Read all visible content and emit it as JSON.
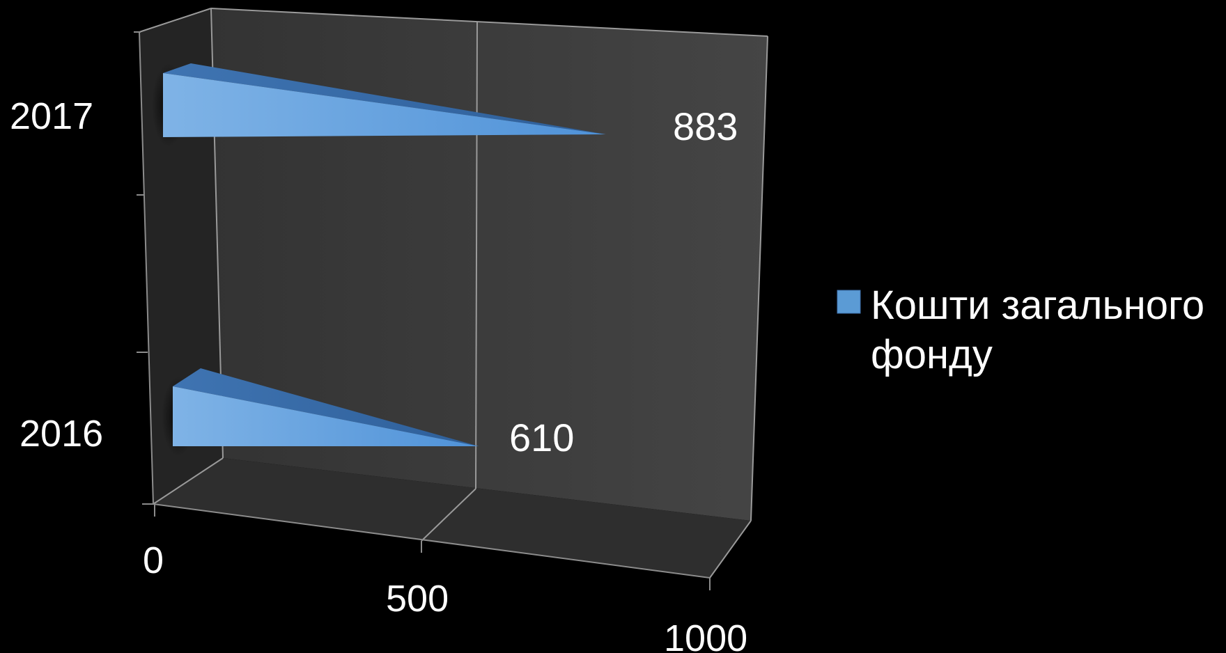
{
  "chart_data": {
    "type": "bar",
    "orientation": "horizontal",
    "style": "3d-pyramid",
    "categories": [
      "2016",
      "2017"
    ],
    "series": [
      {
        "name": "Кошти загального фонду",
        "values": [
          610,
          883
        ],
        "color": "#5b9bd5"
      }
    ],
    "xlim": [
      0,
      1000
    ],
    "x_ticks": [
      "0",
      "500",
      "1000"
    ],
    "y_ticks": [
      "2016",
      "2017"
    ],
    "data_labels": [
      "610",
      "883"
    ],
    "legend": {
      "position": "right",
      "entries": [
        "Кошти загального",
        "фонду"
      ]
    },
    "grid": true,
    "colors": {
      "background": "#000000",
      "wall_back": "#3c3c3c",
      "wall_side": "#262626",
      "floor": "#2f2f2f",
      "series": "#5b9bd5",
      "text": "#ffffff"
    }
  }
}
